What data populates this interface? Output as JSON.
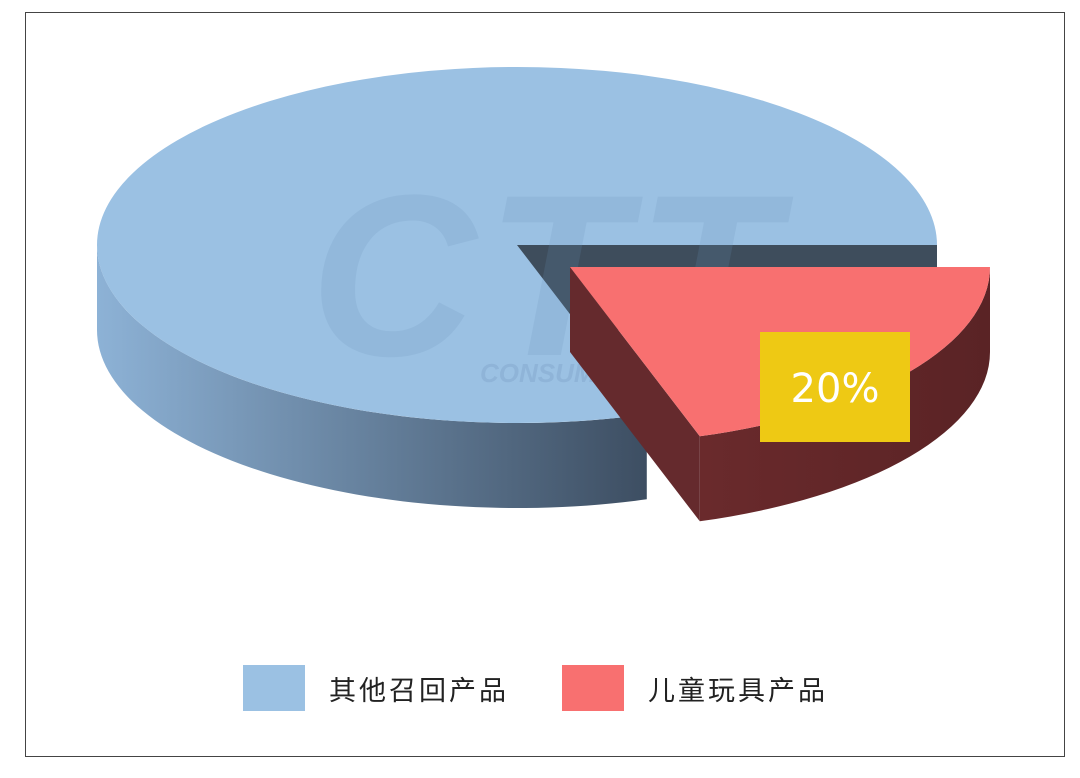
{
  "chart_data": {
    "type": "pie",
    "style": "3d-exploded",
    "categories": [
      "其他召回产品",
      "儿童玩具产品"
    ],
    "values": [
      80,
      20
    ],
    "colors": [
      "#9bc1e3",
      "#f87070"
    ],
    "data_labels": [
      {
        "category": "儿童玩具产品",
        "text": "20%",
        "box_color": "#eec914"
      }
    ],
    "legend": {
      "placement": "bottom",
      "entries": [
        "其他召回产品",
        "儿童玩具产品"
      ]
    },
    "exploded": "儿童玩具产品"
  },
  "watermark": {
    "logo": "CTT",
    "text": "CONSUMER TESTING TECH"
  }
}
